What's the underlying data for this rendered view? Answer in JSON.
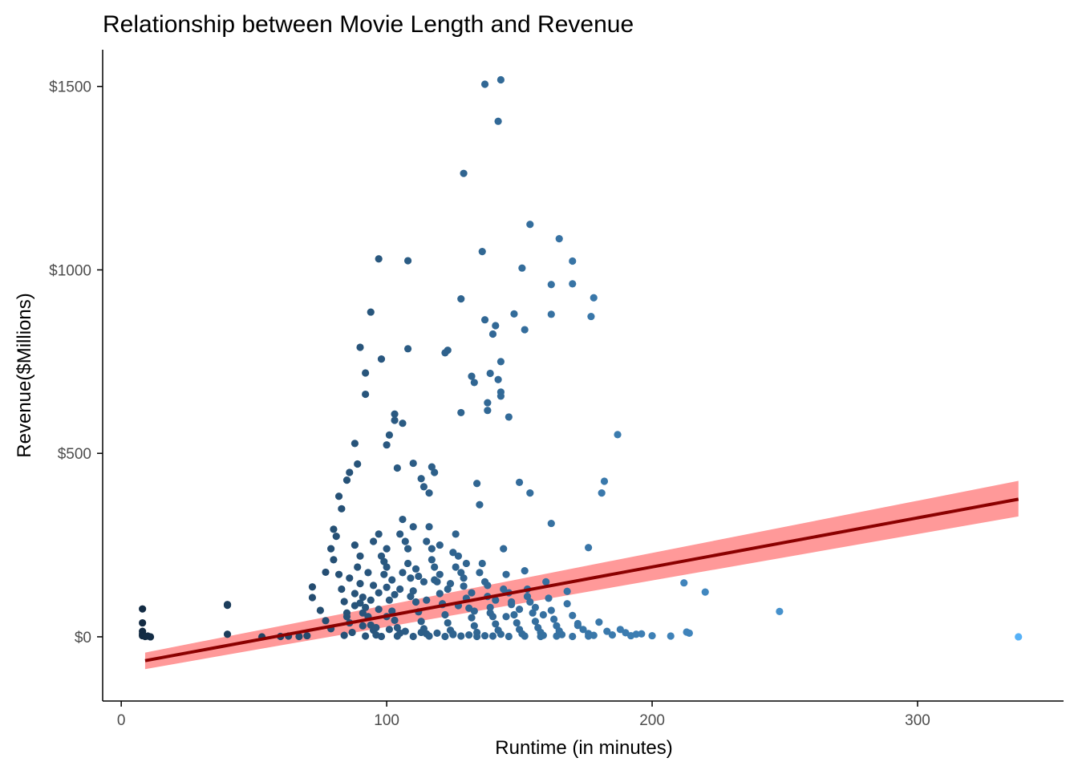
{
  "chart_data": {
    "type": "scatter",
    "title": "Relationship between Movie Length and Revenue",
    "xlabel": "Runtime (in minutes)",
    "ylabel": "Revenue($Millions)",
    "xlim": [
      -7,
      355
    ],
    "ylim": [
      -175,
      1600
    ],
    "x_ticks": [
      0,
      100,
      200,
      300
    ],
    "x_tick_labels": [
      "0",
      "100",
      "200",
      "300"
    ],
    "y_ticks": [
      0,
      500,
      1000,
      1500
    ],
    "y_tick_labels": [
      "$0",
      "$500",
      "$1000",
      "$1500"
    ],
    "grid": false,
    "legend": "none",
    "point_color_scale": {
      "maps": "x",
      "low": "#132b43",
      "high": "#56b1f7"
    },
    "points": [
      [
        8,
        76
      ],
      [
        8,
        38
      ],
      [
        8,
        15
      ],
      [
        8,
        8
      ],
      [
        8,
        3
      ],
      [
        9,
        1
      ],
      [
        10,
        2
      ],
      [
        11,
        0
      ],
      [
        40,
        88
      ],
      [
        40,
        86
      ],
      [
        40,
        7
      ],
      [
        53,
        0
      ],
      [
        60,
        1
      ],
      [
        63,
        2
      ],
      [
        67,
        1
      ],
      [
        70,
        3
      ],
      [
        338,
        0
      ],
      [
        248,
        69
      ],
      [
        220,
        122
      ],
      [
        214,
        10
      ],
      [
        213,
        13
      ],
      [
        212,
        147
      ],
      [
        207,
        2
      ],
      [
        200,
        3
      ],
      [
        194,
        7
      ],
      [
        190,
        11
      ],
      [
        187,
        551
      ],
      [
        182,
        424
      ],
      [
        181,
        392
      ],
      [
        178,
        924
      ],
      [
        177,
        873
      ],
      [
        176,
        243
      ],
      [
        172,
        31
      ],
      [
        170,
        1024
      ],
      [
        170,
        962
      ],
      [
        168,
        124
      ],
      [
        165,
        1085
      ],
      [
        162,
        879
      ],
      [
        162,
        960
      ],
      [
        162,
        309
      ],
      [
        154,
        1124
      ],
      [
        154,
        392
      ],
      [
        152,
        837
      ],
      [
        151,
        1005
      ],
      [
        150,
        421
      ],
      [
        148,
        880
      ],
      [
        146,
        599
      ],
      [
        143,
        1518
      ],
      [
        143,
        750
      ],
      [
        143,
        667
      ],
      [
        143,
        656
      ],
      [
        142,
        1405
      ],
      [
        142,
        701
      ],
      [
        141,
        848
      ],
      [
        140,
        825
      ],
      [
        139,
        718
      ],
      [
        138,
        638
      ],
      [
        138,
        617
      ],
      [
        137,
        1506
      ],
      [
        137,
        864
      ],
      [
        136,
        1050
      ],
      [
        134,
        418
      ],
      [
        133,
        693
      ],
      [
        132,
        710
      ],
      [
        129,
        1263
      ],
      [
        128,
        921
      ],
      [
        128,
        611
      ],
      [
        123,
        781
      ],
      [
        122,
        774
      ],
      [
        118,
        448
      ],
      [
        117,
        463
      ],
      [
        116,
        392
      ],
      [
        114,
        409
      ],
      [
        113,
        431
      ],
      [
        110,
        473
      ],
      [
        108,
        1025
      ],
      [
        108,
        785
      ],
      [
        106,
        582
      ],
      [
        104,
        460
      ],
      [
        103,
        607
      ],
      [
        103,
        590
      ],
      [
        101,
        550
      ],
      [
        100,
        523
      ],
      [
        98,
        757
      ],
      [
        97,
        1030
      ],
      [
        94,
        885
      ],
      [
        92,
        719
      ],
      [
        92,
        661
      ],
      [
        90,
        789
      ],
      [
        89,
        471
      ],
      [
        88,
        527
      ],
      [
        86,
        448
      ],
      [
        85,
        427
      ],
      [
        83,
        349
      ],
      [
        82,
        383
      ],
      [
        80,
        293
      ],
      [
        81,
        274
      ],
      [
        79,
        240
      ],
      [
        77,
        176
      ],
      [
        72,
        136
      ],
      [
        72,
        107
      ],
      [
        75,
        72
      ],
      [
        77,
        44
      ],
      [
        79,
        22
      ],
      [
        80,
        210
      ],
      [
        82,
        170
      ],
      [
        83,
        130
      ],
      [
        84,
        96
      ],
      [
        85,
        65
      ],
      [
        86,
        38
      ],
      [
        87,
        12
      ],
      [
        88,
        250
      ],
      [
        89,
        190
      ],
      [
        90,
        145
      ],
      [
        91,
        108
      ],
      [
        92,
        80
      ],
      [
        93,
        55
      ],
      [
        94,
        32
      ],
      [
        95,
        18
      ],
      [
        96,
        5
      ],
      [
        97,
        280
      ],
      [
        98,
        220
      ],
      [
        99,
        170
      ],
      [
        100,
        135
      ],
      [
        101,
        100
      ],
      [
        102,
        70
      ],
      [
        103,
        45
      ],
      [
        104,
        25
      ],
      [
        105,
        10
      ],
      [
        106,
        320
      ],
      [
        107,
        260
      ],
      [
        108,
        200
      ],
      [
        109,
        160
      ],
      [
        110,
        125
      ],
      [
        111,
        95
      ],
      [
        112,
        68
      ],
      [
        113,
        42
      ],
      [
        114,
        22
      ],
      [
        115,
        8
      ],
      [
        116,
        300
      ],
      [
        117,
        240
      ],
      [
        118,
        190
      ],
      [
        119,
        150
      ],
      [
        120,
        118
      ],
      [
        121,
        88
      ],
      [
        122,
        60
      ],
      [
        123,
        38
      ],
      [
        124,
        18
      ],
      [
        125,
        6
      ],
      [
        126,
        280
      ],
      [
        127,
        220
      ],
      [
        128,
        175
      ],
      [
        129,
        138
      ],
      [
        130,
        105
      ],
      [
        131,
        78
      ],
      [
        132,
        52
      ],
      [
        133,
        30
      ],
      [
        134,
        12
      ],
      [
        135,
        360
      ],
      [
        136,
        200
      ],
      [
        137,
        150
      ],
      [
        138,
        110
      ],
      [
        139,
        80
      ],
      [
        140,
        55
      ],
      [
        141,
        35
      ],
      [
        142,
        18
      ],
      [
        143,
        7
      ],
      [
        144,
        240
      ],
      [
        145,
        170
      ],
      [
        146,
        120
      ],
      [
        147,
        88
      ],
      [
        148,
        60
      ],
      [
        149,
        38
      ],
      [
        150,
        20
      ],
      [
        151,
        8
      ],
      [
        152,
        180
      ],
      [
        153,
        130
      ],
      [
        154,
        95
      ],
      [
        155,
        65
      ],
      [
        156,
        42
      ],
      [
        157,
        25
      ],
      [
        158,
        12
      ],
      [
        159,
        4
      ],
      [
        160,
        150
      ],
      [
        161,
        105
      ],
      [
        162,
        72
      ],
      [
        163,
        48
      ],
      [
        164,
        30
      ],
      [
        165,
        16
      ],
      [
        166,
        6
      ],
      [
        168,
        90
      ],
      [
        170,
        58
      ],
      [
        172,
        36
      ],
      [
        174,
        20
      ],
      [
        176,
        9
      ],
      [
        178,
        4
      ],
      [
        180,
        40
      ],
      [
        183,
        15
      ],
      [
        185,
        5
      ],
      [
        188,
        20
      ],
      [
        192,
        3
      ],
      [
        196,
        8
      ],
      [
        90,
        220
      ],
      [
        95,
        260
      ],
      [
        100,
        240
      ],
      [
        105,
        280
      ],
      [
        110,
        300
      ],
      [
        115,
        260
      ],
      [
        120,
        250
      ],
      [
        125,
        230
      ],
      [
        130,
        200
      ],
      [
        100,
        190
      ],
      [
        106,
        175
      ],
      [
        112,
        165
      ],
      [
        118,
        155
      ],
      [
        124,
        145
      ],
      [
        97,
        120
      ],
      [
        103,
        115
      ],
      [
        109,
        110
      ],
      [
        115,
        100
      ],
      [
        121,
        90
      ],
      [
        127,
        85
      ],
      [
        133,
        70
      ],
      [
        139,
        65
      ],
      [
        145,
        55
      ],
      [
        91,
        30
      ],
      [
        96,
        25
      ],
      [
        101,
        20
      ],
      [
        107,
        15
      ],
      [
        113,
        12
      ],
      [
        119,
        10
      ],
      [
        125,
        8
      ],
      [
        131,
        5
      ],
      [
        137,
        3
      ],
      [
        92,
        2
      ],
      [
        98,
        1
      ],
      [
        104,
        2
      ],
      [
        110,
        1
      ],
      [
        116,
        2
      ],
      [
        122,
        1
      ],
      [
        128,
        2
      ],
      [
        134,
        1
      ],
      [
        140,
        2
      ],
      [
        146,
        1
      ],
      [
        152,
        2
      ],
      [
        158,
        1
      ],
      [
        164,
        2
      ],
      [
        170,
        1
      ],
      [
        176,
        2
      ],
      [
        84,
        4
      ],
      [
        86,
        160
      ],
      [
        88,
        118
      ],
      [
        90,
        92
      ],
      [
        93,
        175
      ],
      [
        95,
        140
      ],
      [
        99,
        205
      ],
      [
        102,
        155
      ],
      [
        105,
        130
      ],
      [
        108,
        240
      ],
      [
        111,
        185
      ],
      [
        114,
        150
      ],
      [
        117,
        210
      ],
      [
        120,
        170
      ],
      [
        123,
        130
      ],
      [
        126,
        190
      ],
      [
        129,
        160
      ],
      [
        132,
        120
      ],
      [
        135,
        175
      ],
      [
        138,
        140
      ],
      [
        141,
        100
      ],
      [
        144,
        130
      ],
      [
        147,
        95
      ],
      [
        150,
        75
      ],
      [
        153,
        110
      ],
      [
        156,
        80
      ],
      [
        159,
        60
      ],
      [
        85,
        55
      ],
      [
        88,
        85
      ],
      [
        91,
        65
      ],
      [
        94,
        100
      ],
      [
        97,
        75
      ],
      [
        100,
        55
      ]
    ],
    "regression": {
      "x": [
        9,
        338
      ],
      "y": [
        -65,
        375
      ],
      "ci_lower": [
        -88,
        328
      ],
      "ci_upper": [
        -43,
        425
      ]
    },
    "colors": {
      "line": "#8b0000",
      "ribbon": "#ff9999",
      "axis": "#000000",
      "tick_label": "#4d4d4d"
    }
  }
}
